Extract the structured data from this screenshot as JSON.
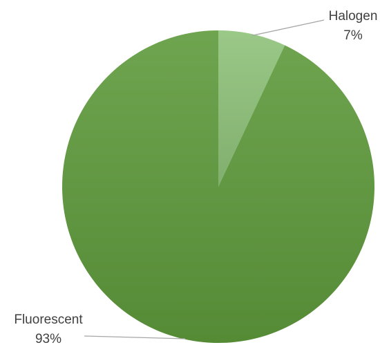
{
  "chart_data": {
    "type": "pie",
    "title": "",
    "legend": "none",
    "start": "top",
    "direction": "clockwise",
    "slices": [
      {
        "name": "Halogen",
        "value": 7,
        "value_label": "7%",
        "color": "#8fc27a"
      },
      {
        "name": "Fluorescent",
        "value": 93,
        "value_label": "93%",
        "color": "#5f9a3c"
      }
    ]
  }
}
